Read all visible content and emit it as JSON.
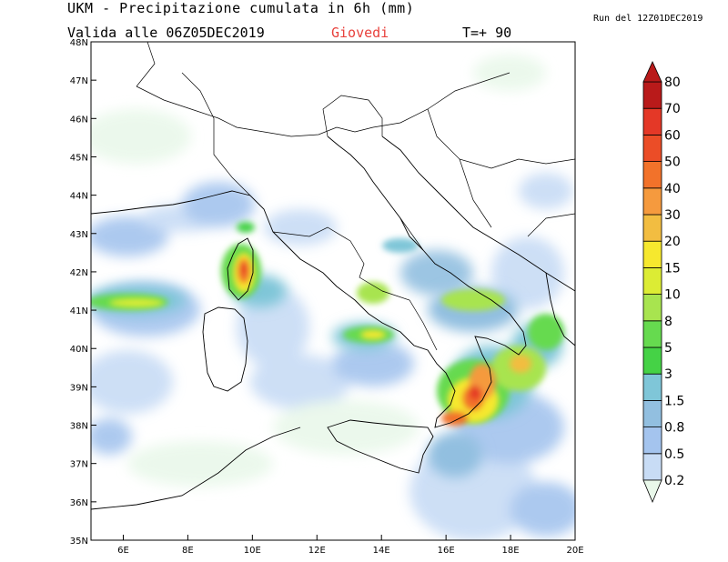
{
  "header": {
    "title": "UKM - Precipitazione cumulata in 6h (mm)",
    "valid_line": "Valida alle 06Z05DEC2019",
    "day": "Giovedi",
    "lead_time": "T=+ 90",
    "run": "Run del 12Z01DEC2019"
  },
  "colors": {
    "day_text": "#e8413c",
    "coast": "#000000",
    "border": "#000000"
  },
  "map": {
    "lon_range": [
      5,
      20
    ],
    "lat_range": [
      35,
      48
    ],
    "lon_ticks": [
      "6E",
      "8E",
      "10E",
      "12E",
      "14E",
      "16E",
      "18E",
      "20E"
    ],
    "lat_ticks": [
      "35N",
      "36N",
      "37N",
      "38N",
      "39N",
      "40N",
      "41N",
      "42N",
      "43N",
      "44N",
      "45N",
      "46N",
      "47N",
      "48N"
    ]
  },
  "colorbar": {
    "labels": [
      "0.2",
      "0.5",
      "0.8",
      "1.5",
      "3",
      "5",
      "8",
      "10",
      "15",
      "20",
      "30",
      "40",
      "50",
      "60",
      "70",
      "80"
    ],
    "colors": [
      "#e9f8ea",
      "#c8dcf5",
      "#a4c4ee",
      "#92bfe0",
      "#7fc6d8",
      "#45d246",
      "#66da4f",
      "#a8e44f",
      "#dcec34",
      "#f6e82e",
      "#f2bd41",
      "#f59a3e",
      "#f2722a",
      "#eb4d27",
      "#e43827",
      "#b91a1a"
    ]
  }
}
